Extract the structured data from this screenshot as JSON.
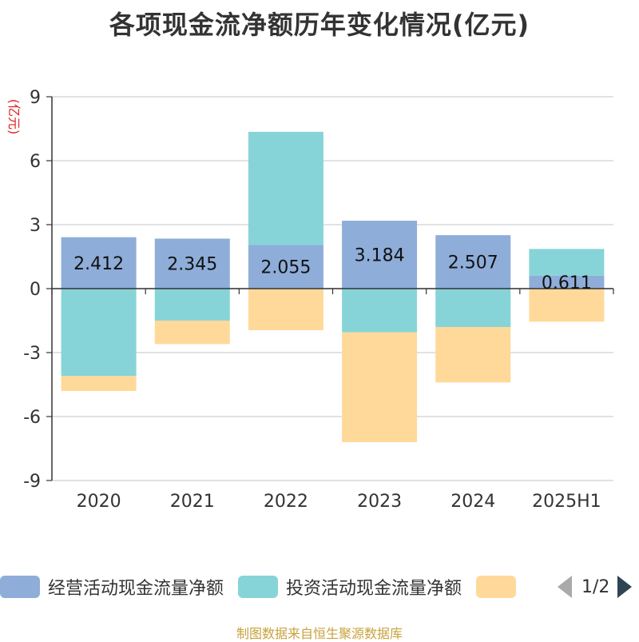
{
  "chart_data": {
    "type": "bar",
    "stacked": true,
    "title": "各项现金流净额历年变化情况(亿元)",
    "ylabel": "(亿元)",
    "categories": [
      "2020",
      "2021",
      "2022",
      "2023",
      "2024",
      "2025H1"
    ],
    "ylim": [
      -9,
      9
    ],
    "yticks": [
      9,
      6,
      3,
      0,
      -3,
      -6,
      -9
    ],
    "ytick_labels": [
      "9",
      "6",
      "3",
      "0",
      "-3",
      "-6",
      "-9"
    ],
    "grid": true,
    "series": [
      {
        "name": "经营活动现金流量净额",
        "color": "#8eadd9",
        "values": [
          2.412,
          2.345,
          2.055,
          3.184,
          2.507,
          0.611
        ],
        "labels": [
          "2.412",
          "2.345",
          "2.055",
          "3.184",
          "2.507",
          "0.611"
        ]
      },
      {
        "name": "投资活动现金流量净额",
        "color": "#86d4d8",
        "values": [
          -4.1,
          -1.5,
          5.3,
          -2.05,
          -1.8,
          1.25
        ]
      },
      {
        "name": "",
        "color": "#ffd999",
        "values": [
          -0.7,
          -1.1,
          -1.95,
          -5.15,
          -2.6,
          -1.55
        ]
      }
    ]
  },
  "legend": {
    "items": [
      "经营活动现金流量净额",
      "投资活动现金流量净额",
      ""
    ],
    "page": "1/2"
  },
  "source_note": "制图数据来自恒生聚源数据库"
}
